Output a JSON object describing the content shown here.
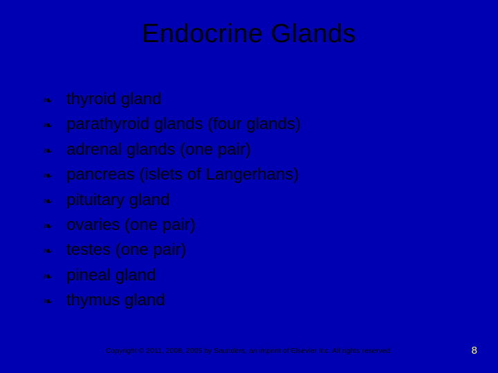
{
  "background_color": "#0000b3",
  "title": {
    "text": "Endocrine Glands",
    "color": "#000000",
    "fontsize": 38
  },
  "bullet_glyph": "❧",
  "bullets": [
    "thyroid gland",
    "parathyroid glands (four glands)",
    "adrenal glands (one pair)",
    "pancreas (islets of Langerhans)",
    "pituitary gland",
    "ovaries (one pair)",
    "testes (one pair)",
    "pineal gland",
    "thymus gland"
  ],
  "bullet_style": {
    "text_color": "#000000",
    "text_fontsize": 24,
    "icon_color": "#000000"
  },
  "footer": {
    "text": "Copyright © 2011, 2008, 2005 by Saunders, an imprint of Elsevier Inc. All rights reserved.",
    "color": "#000000",
    "fontsize": 10.5
  },
  "page_number": {
    "text": "8",
    "color": "#ffff66",
    "fontsize": 15
  }
}
